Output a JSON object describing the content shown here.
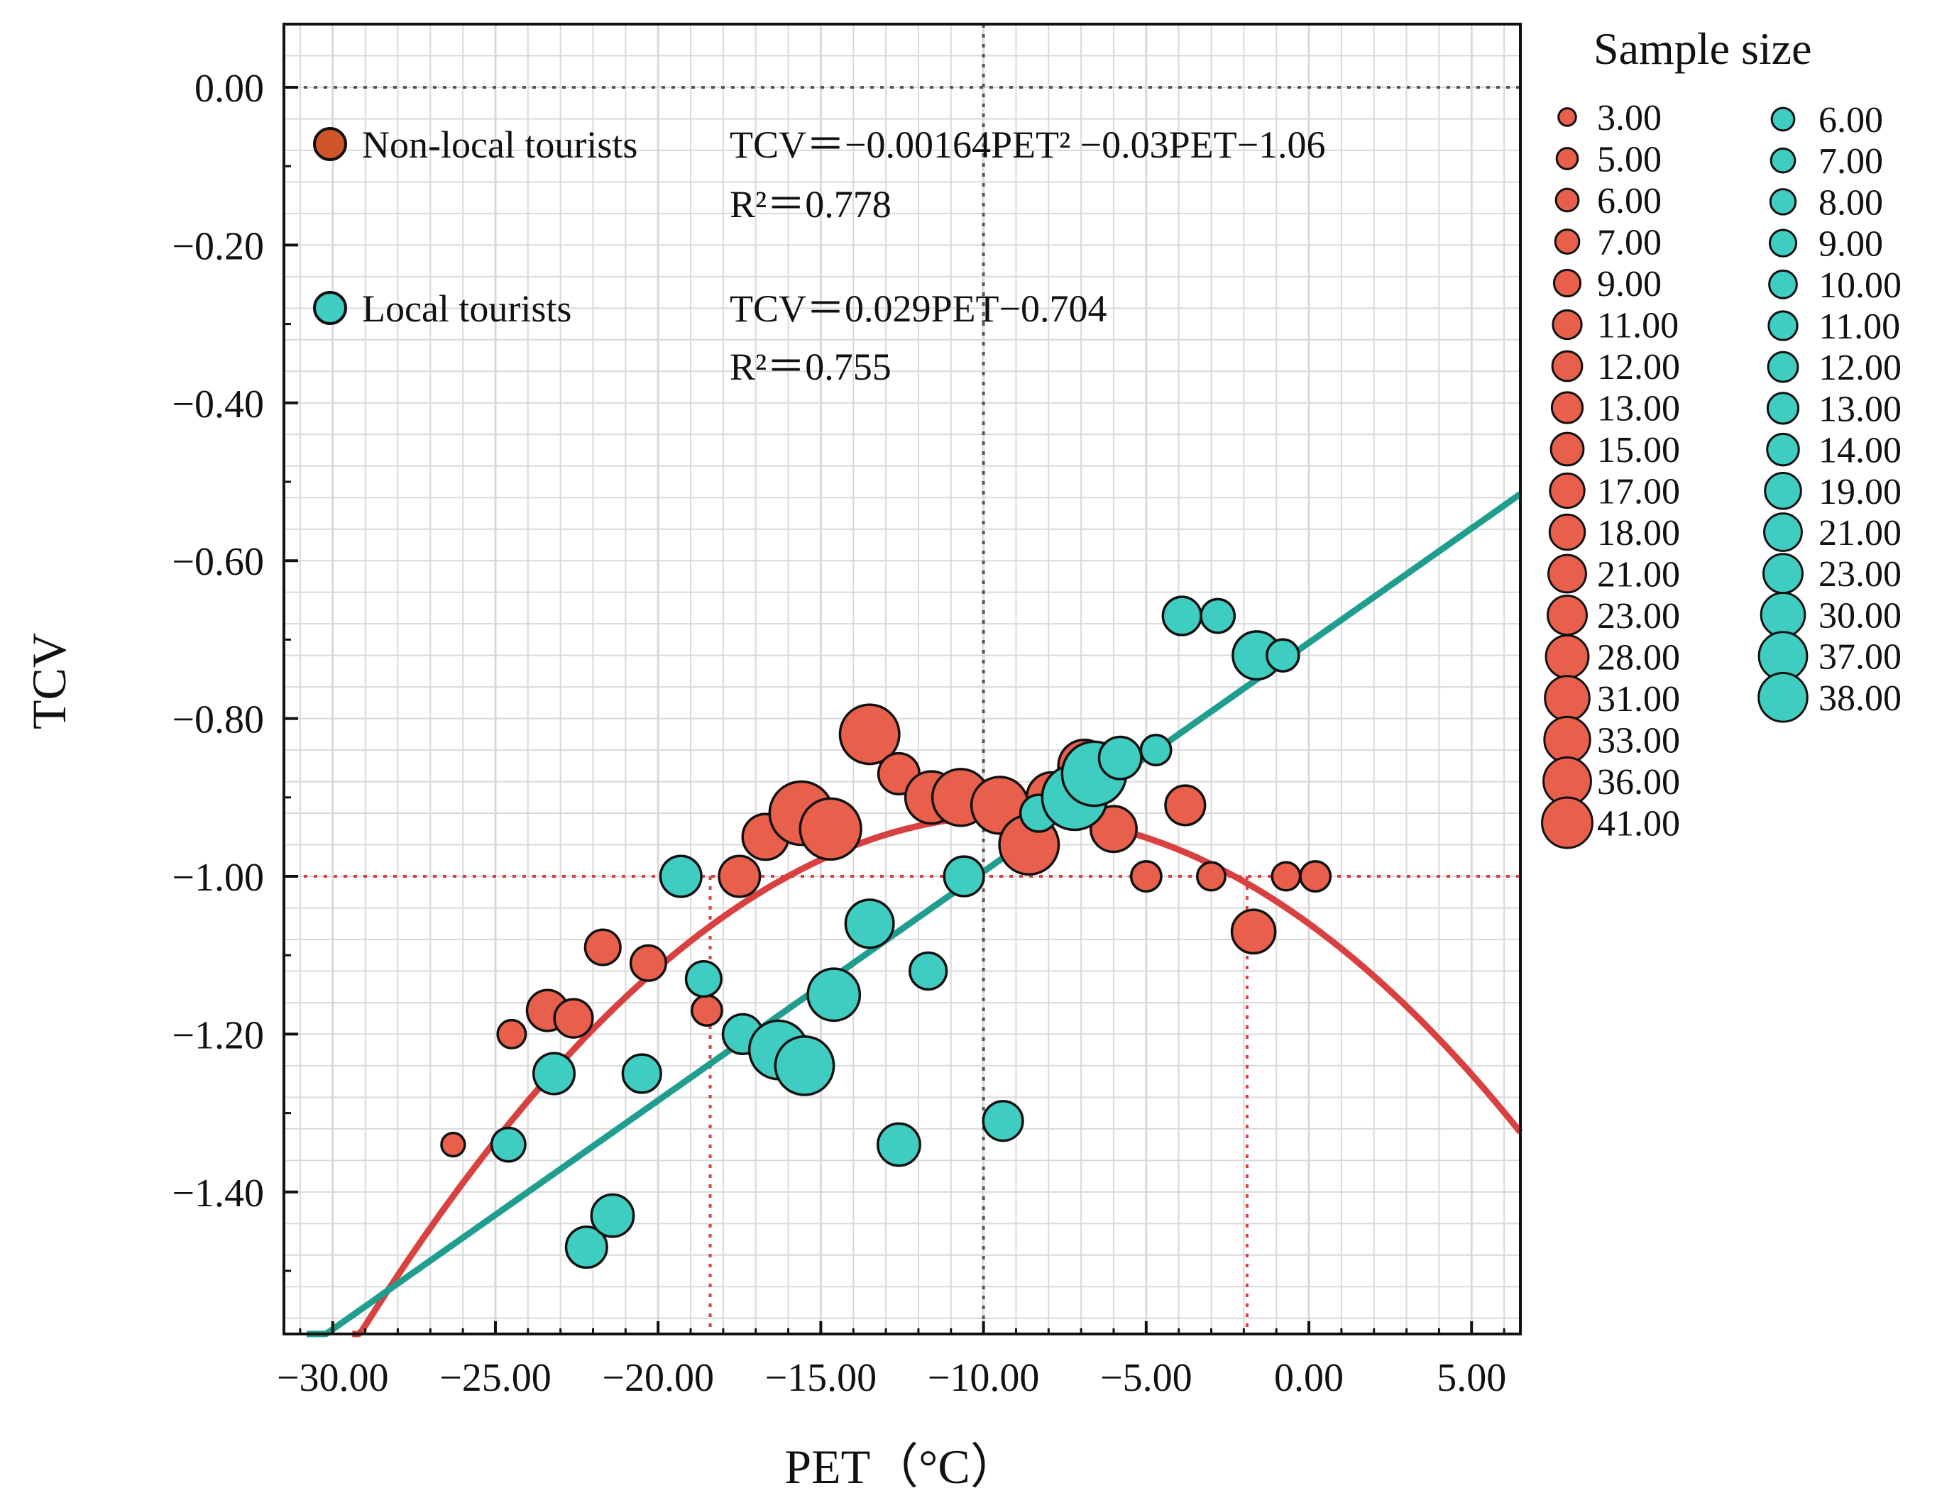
{
  "chart_data": {
    "type": "scatter",
    "xlabel": "PET（°C）",
    "ylabel": "TCV",
    "xlim": [
      -31.5,
      6.5
    ],
    "ylim": [
      -1.58,
      0.08
    ],
    "xticks": [
      -30,
      -25,
      -20,
      -15,
      -10,
      -5,
      0,
      5
    ],
    "xtick_labels": [
      "−30.00",
      "−25.00",
      "−20.00",
      "−15.00",
      "−10.00",
      "−5.00",
      "0.00",
      "5.00"
    ],
    "yticks": [
      0,
      -0.2,
      -0.4,
      -0.6,
      -0.8,
      -1.0,
      -1.2,
      -1.4
    ],
    "ytick_labels": [
      "0.00",
      "−0.20",
      "−0.40",
      "−0.60",
      "−0.80",
      "−1.00",
      "−1.20",
      "−1.40"
    ],
    "grid": true,
    "reference_lines": {
      "hline_black": 0,
      "vline_black": -10,
      "hline_red": -1.0,
      "vlines_red": [
        -18.4,
        -1.9
      ]
    },
    "series": [
      {
        "name": "Non-local tourists",
        "color": "#e8604c",
        "equation": "TCV＝−0.00164PET² −0.03PET−1.06",
        "r2": "R²＝0.778",
        "fit": {
          "type": "quadratic",
          "a": -0.00164,
          "b": -0.03,
          "c": -1.06
        },
        "fit_color": "#d94040",
        "points": [
          {
            "x": -26.3,
            "y": -1.34,
            "n": 3
          },
          {
            "x": -24.5,
            "y": -1.2,
            "n": 5
          },
          {
            "x": -23.4,
            "y": -1.17,
            "n": 13
          },
          {
            "x": -22.6,
            "y": -1.18,
            "n": 11
          },
          {
            "x": -21.7,
            "y": -1.09,
            "n": 9
          },
          {
            "x": -20.3,
            "y": -1.11,
            "n": 9
          },
          {
            "x": -18.5,
            "y": -1.17,
            "n": 6
          },
          {
            "x": -17.5,
            "y": -1.0,
            "n": 13
          },
          {
            "x": -16.7,
            "y": -0.95,
            "n": 17
          },
          {
            "x": -15.6,
            "y": -0.92,
            "n": 36
          },
          {
            "x": -14.7,
            "y": -0.94,
            "n": 33
          },
          {
            "x": -13.5,
            "y": -0.82,
            "n": 31
          },
          {
            "x": -12.6,
            "y": -0.87,
            "n": 13
          },
          {
            "x": -11.6,
            "y": -0.9,
            "n": 23
          },
          {
            "x": -10.7,
            "y": -0.9,
            "n": 28
          },
          {
            "x": -9.5,
            "y": -0.91,
            "n": 28
          },
          {
            "x": -8.6,
            "y": -0.96,
            "n": 31
          },
          {
            "x": -7.9,
            "y": -0.9,
            "n": 21
          },
          {
            "x": -6.9,
            "y": -0.86,
            "n": 23
          },
          {
            "x": -6.0,
            "y": -0.94,
            "n": 17
          },
          {
            "x": -5.0,
            "y": -1.0,
            "n": 6
          },
          {
            "x": -3.8,
            "y": -0.91,
            "n": 12
          },
          {
            "x": -3.0,
            "y": -1.0,
            "n": 5
          },
          {
            "x": -1.7,
            "y": -1.07,
            "n": 15
          },
          {
            "x": -0.7,
            "y": -1.0,
            "n": 5
          },
          {
            "x": 0.2,
            "y": -1.0,
            "n": 6
          }
        ]
      },
      {
        "name": "Local tourists",
        "color": "#3ecdc0",
        "equation": "TCV＝0.029PET−0.704",
        "r2": "R²＝0.755",
        "fit": {
          "type": "linear",
          "slope": 0.029,
          "intercept": -0.704
        },
        "fit_color": "#1f9e8f",
        "points": [
          {
            "x": -24.6,
            "y": -1.34,
            "n": 8
          },
          {
            "x": -23.2,
            "y": -1.25,
            "n": 13
          },
          {
            "x": -22.2,
            "y": -1.47,
            "n": 13
          },
          {
            "x": -21.4,
            "y": -1.43,
            "n": 14
          },
          {
            "x": -20.5,
            "y": -1.25,
            "n": 11
          },
          {
            "x": -19.3,
            "y": -1.0,
            "n": 13
          },
          {
            "x": -18.6,
            "y": -1.13,
            "n": 9
          },
          {
            "x": -17.4,
            "y": -1.2,
            "n": 12
          },
          {
            "x": -16.3,
            "y": -1.22,
            "n": 30
          },
          {
            "x": -15.5,
            "y": -1.24,
            "n": 30
          },
          {
            "x": -14.6,
            "y": -1.15,
            "n": 23
          },
          {
            "x": -13.5,
            "y": -1.06,
            "n": 19
          },
          {
            "x": -12.6,
            "y": -1.34,
            "n": 14
          },
          {
            "x": -11.7,
            "y": -1.12,
            "n": 10
          },
          {
            "x": -10.6,
            "y": -1.0,
            "n": 12
          },
          {
            "x": -9.4,
            "y": -1.31,
            "n": 12
          },
          {
            "x": -8.3,
            "y": -0.92,
            "n": 10
          },
          {
            "x": -7.2,
            "y": -0.9,
            "n": 38
          },
          {
            "x": -6.6,
            "y": -0.87,
            "n": 37
          },
          {
            "x": -5.8,
            "y": -0.85,
            "n": 14
          },
          {
            "x": -4.7,
            "y": -0.84,
            "n": 6
          },
          {
            "x": -3.9,
            "y": -0.67,
            "n": 11
          },
          {
            "x": -2.8,
            "y": -0.67,
            "n": 8
          },
          {
            "x": -1.6,
            "y": -0.72,
            "n": 19
          },
          {
            "x": -0.8,
            "y": -0.72,
            "n": 7
          }
        ]
      }
    ],
    "size_legend": {
      "title": "Sample size",
      "non_local": [
        "3.00",
        "5.00",
        "6.00",
        "7.00",
        "9.00",
        "11.00",
        "12.00",
        "13.00",
        "15.00",
        "17.00",
        "18.00",
        "21.00",
        "23.00",
        "28.00",
        "31.00",
        "33.00",
        "36.00",
        "41.00"
      ],
      "local": [
        "6.00",
        "7.00",
        "8.00",
        "9.00",
        "10.00",
        "11.00",
        "12.00",
        "13.00",
        "14.00",
        "19.00",
        "21.00",
        "23.00",
        "30.00",
        "37.00",
        "38.00"
      ]
    }
  },
  "legend": {
    "non_local_label": "Non-local tourists",
    "local_label": "Local tourists"
  },
  "colors": {
    "non_local_point": "#e8604c",
    "non_local_swatch": "#d1552a",
    "local_point": "#3ecdc0",
    "non_local_fit": "#d94040",
    "local_fit": "#1f9e8f",
    "grid": "#d9d9d9"
  }
}
